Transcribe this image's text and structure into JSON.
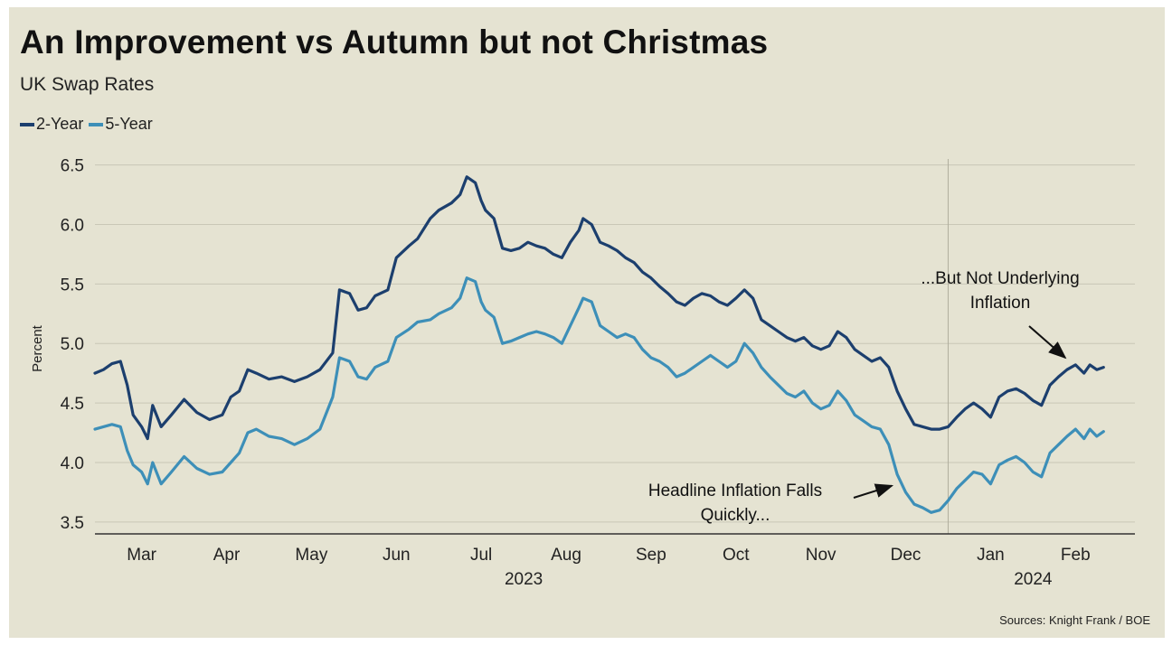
{
  "header": {
    "title": "An Improvement vs Autumn but not Christmas",
    "subtitle": "UK Swap Rates"
  },
  "footer": {
    "source": "Sources: Knight Frank / BOE"
  },
  "chart_data": {
    "type": "line",
    "title": "An Improvement vs Autumn but not Christmas",
    "subtitle": "UK Swap Rates",
    "ylabel": "Percent",
    "xlabel": "",
    "ylim": [
      3.4,
      6.55
    ],
    "xlim": [
      0,
      12.25
    ],
    "yticks": [
      3.5,
      4.0,
      4.5,
      5.0,
      5.5,
      6.0,
      6.5
    ],
    "ytick_labels": [
      "3.5",
      "4.0",
      "4.5",
      "5.0",
      "5.5",
      "6.0",
      "6.5"
    ],
    "xticks": [
      {
        "label": "Mar",
        "pos": 0.55
      },
      {
        "label": "Apr",
        "pos": 1.55
      },
      {
        "label": "May",
        "pos": 2.55
      },
      {
        "label": "Jun",
        "pos": 3.55
      },
      {
        "label": "Jul",
        "pos": 4.55
      },
      {
        "label": "Aug",
        "pos": 5.55
      },
      {
        "label": "Sep",
        "pos": 6.55
      },
      {
        "label": "Oct",
        "pos": 7.55
      },
      {
        "label": "Nov",
        "pos": 8.55
      },
      {
        "label": "Dec",
        "pos": 9.55
      },
      {
        "label": "Jan",
        "pos": 10.55
      },
      {
        "label": "Feb",
        "pos": 11.55
      }
    ],
    "year_labels": [
      {
        "label": "2023",
        "pos": 5.05
      },
      {
        "label": "2024",
        "pos": 11.05
      }
    ],
    "year_divider": 10.05,
    "grid": true,
    "legend_position": "top-left",
    "series": [
      {
        "name": "2-Year",
        "color": "#1c3f6e",
        "points": [
          [
            0.0,
            4.75
          ],
          [
            0.1,
            4.78
          ],
          [
            0.2,
            4.83
          ],
          [
            0.3,
            4.85
          ],
          [
            0.38,
            4.65
          ],
          [
            0.45,
            4.4
          ],
          [
            0.55,
            4.3
          ],
          [
            0.62,
            4.2
          ],
          [
            0.68,
            4.48
          ],
          [
            0.78,
            4.3
          ],
          [
            0.9,
            4.4
          ],
          [
            1.05,
            4.53
          ],
          [
            1.2,
            4.42
          ],
          [
            1.35,
            4.36
          ],
          [
            1.5,
            4.4
          ],
          [
            1.6,
            4.55
          ],
          [
            1.7,
            4.6
          ],
          [
            1.8,
            4.78
          ],
          [
            1.9,
            4.75
          ],
          [
            2.05,
            4.7
          ],
          [
            2.2,
            4.72
          ],
          [
            2.35,
            4.68
          ],
          [
            2.5,
            4.72
          ],
          [
            2.65,
            4.78
          ],
          [
            2.8,
            4.92
          ],
          [
            2.88,
            5.45
          ],
          [
            3.0,
            5.42
          ],
          [
            3.1,
            5.28
          ],
          [
            3.2,
            5.3
          ],
          [
            3.3,
            5.4
          ],
          [
            3.45,
            5.45
          ],
          [
            3.55,
            5.72
          ],
          [
            3.7,
            5.82
          ],
          [
            3.8,
            5.88
          ],
          [
            3.95,
            6.05
          ],
          [
            4.05,
            6.12
          ],
          [
            4.2,
            6.18
          ],
          [
            4.3,
            6.25
          ],
          [
            4.38,
            6.4
          ],
          [
            4.48,
            6.35
          ],
          [
            4.55,
            6.2
          ],
          [
            4.6,
            6.12
          ],
          [
            4.7,
            6.05
          ],
          [
            4.8,
            5.8
          ],
          [
            4.9,
            5.78
          ],
          [
            5.0,
            5.8
          ],
          [
            5.1,
            5.85
          ],
          [
            5.2,
            5.82
          ],
          [
            5.3,
            5.8
          ],
          [
            5.4,
            5.75
          ],
          [
            5.5,
            5.72
          ],
          [
            5.6,
            5.85
          ],
          [
            5.7,
            5.95
          ],
          [
            5.75,
            6.05
          ],
          [
            5.85,
            6.0
          ],
          [
            5.95,
            5.85
          ],
          [
            6.05,
            5.82
          ],
          [
            6.15,
            5.78
          ],
          [
            6.25,
            5.72
          ],
          [
            6.35,
            5.68
          ],
          [
            6.45,
            5.6
          ],
          [
            6.55,
            5.55
          ],
          [
            6.65,
            5.48
          ],
          [
            6.75,
            5.42
          ],
          [
            6.85,
            5.35
          ],
          [
            6.95,
            5.32
          ],
          [
            7.05,
            5.38
          ],
          [
            7.15,
            5.42
          ],
          [
            7.25,
            5.4
          ],
          [
            7.35,
            5.35
          ],
          [
            7.45,
            5.32
          ],
          [
            7.55,
            5.38
          ],
          [
            7.65,
            5.45
          ],
          [
            7.75,
            5.38
          ],
          [
            7.85,
            5.2
          ],
          [
            7.95,
            5.15
          ],
          [
            8.05,
            5.1
          ],
          [
            8.15,
            5.05
          ],
          [
            8.25,
            5.02
          ],
          [
            8.35,
            5.05
          ],
          [
            8.45,
            4.98
          ],
          [
            8.55,
            4.95
          ],
          [
            8.65,
            4.98
          ],
          [
            8.75,
            5.1
          ],
          [
            8.85,
            5.05
          ],
          [
            8.95,
            4.95
          ],
          [
            9.05,
            4.9
          ],
          [
            9.15,
            4.85
          ],
          [
            9.25,
            4.88
          ],
          [
            9.35,
            4.8
          ],
          [
            9.45,
            4.6
          ],
          [
            9.55,
            4.45
          ],
          [
            9.65,
            4.32
          ],
          [
            9.75,
            4.3
          ],
          [
            9.85,
            4.28
          ],
          [
            9.95,
            4.28
          ],
          [
            10.05,
            4.3
          ],
          [
            10.15,
            4.38
          ],
          [
            10.25,
            4.45
          ],
          [
            10.35,
            4.5
          ],
          [
            10.45,
            4.45
          ],
          [
            10.55,
            4.38
          ],
          [
            10.65,
            4.55
          ],
          [
            10.75,
            4.6
          ],
          [
            10.85,
            4.62
          ],
          [
            10.95,
            4.58
          ],
          [
            11.05,
            4.52
          ],
          [
            11.15,
            4.48
          ],
          [
            11.25,
            4.65
          ],
          [
            11.35,
            4.72
          ],
          [
            11.45,
            4.78
          ],
          [
            11.55,
            4.82
          ],
          [
            11.65,
            4.75
          ],
          [
            11.72,
            4.82
          ],
          [
            11.8,
            4.78
          ],
          [
            11.88,
            4.8
          ]
        ]
      },
      {
        "name": "5-Year",
        "color": "#3d8fb8",
        "points": [
          [
            0.0,
            4.28
          ],
          [
            0.1,
            4.3
          ],
          [
            0.2,
            4.32
          ],
          [
            0.3,
            4.3
          ],
          [
            0.38,
            4.1
          ],
          [
            0.45,
            3.98
          ],
          [
            0.55,
            3.92
          ],
          [
            0.62,
            3.82
          ],
          [
            0.68,
            4.0
          ],
          [
            0.78,
            3.82
          ],
          [
            0.9,
            3.92
          ],
          [
            1.05,
            4.05
          ],
          [
            1.2,
            3.95
          ],
          [
            1.35,
            3.9
          ],
          [
            1.5,
            3.92
          ],
          [
            1.6,
            4.0
          ],
          [
            1.7,
            4.08
          ],
          [
            1.8,
            4.25
          ],
          [
            1.9,
            4.28
          ],
          [
            2.05,
            4.22
          ],
          [
            2.2,
            4.2
          ],
          [
            2.35,
            4.15
          ],
          [
            2.5,
            4.2
          ],
          [
            2.65,
            4.28
          ],
          [
            2.8,
            4.55
          ],
          [
            2.88,
            4.88
          ],
          [
            3.0,
            4.85
          ],
          [
            3.1,
            4.72
          ],
          [
            3.2,
            4.7
          ],
          [
            3.3,
            4.8
          ],
          [
            3.45,
            4.85
          ],
          [
            3.55,
            5.05
          ],
          [
            3.7,
            5.12
          ],
          [
            3.8,
            5.18
          ],
          [
            3.95,
            5.2
          ],
          [
            4.05,
            5.25
          ],
          [
            4.2,
            5.3
          ],
          [
            4.3,
            5.38
          ],
          [
            4.38,
            5.55
          ],
          [
            4.48,
            5.52
          ],
          [
            4.55,
            5.35
          ],
          [
            4.6,
            5.28
          ],
          [
            4.7,
            5.22
          ],
          [
            4.8,
            5.0
          ],
          [
            4.9,
            5.02
          ],
          [
            5.0,
            5.05
          ],
          [
            5.1,
            5.08
          ],
          [
            5.2,
            5.1
          ],
          [
            5.3,
            5.08
          ],
          [
            5.4,
            5.05
          ],
          [
            5.5,
            5.0
          ],
          [
            5.6,
            5.15
          ],
          [
            5.7,
            5.3
          ],
          [
            5.75,
            5.38
          ],
          [
            5.85,
            5.35
          ],
          [
            5.95,
            5.15
          ],
          [
            6.05,
            5.1
          ],
          [
            6.15,
            5.05
          ],
          [
            6.25,
            5.08
          ],
          [
            6.35,
            5.05
          ],
          [
            6.45,
            4.95
          ],
          [
            6.55,
            4.88
          ],
          [
            6.65,
            4.85
          ],
          [
            6.75,
            4.8
          ],
          [
            6.85,
            4.72
          ],
          [
            6.95,
            4.75
          ],
          [
            7.05,
            4.8
          ],
          [
            7.15,
            4.85
          ],
          [
            7.25,
            4.9
          ],
          [
            7.35,
            4.85
          ],
          [
            7.45,
            4.8
          ],
          [
            7.55,
            4.85
          ],
          [
            7.65,
            5.0
          ],
          [
            7.75,
            4.92
          ],
          [
            7.85,
            4.8
          ],
          [
            7.95,
            4.72
          ],
          [
            8.05,
            4.65
          ],
          [
            8.15,
            4.58
          ],
          [
            8.25,
            4.55
          ],
          [
            8.35,
            4.6
          ],
          [
            8.45,
            4.5
          ],
          [
            8.55,
            4.45
          ],
          [
            8.65,
            4.48
          ],
          [
            8.75,
            4.6
          ],
          [
            8.85,
            4.52
          ],
          [
            8.95,
            4.4
          ],
          [
            9.05,
            4.35
          ],
          [
            9.15,
            4.3
          ],
          [
            9.25,
            4.28
          ],
          [
            9.35,
            4.15
          ],
          [
            9.45,
            3.9
          ],
          [
            9.55,
            3.75
          ],
          [
            9.65,
            3.65
          ],
          [
            9.75,
            3.62
          ],
          [
            9.85,
            3.58
          ],
          [
            9.95,
            3.6
          ],
          [
            10.05,
            3.68
          ],
          [
            10.15,
            3.78
          ],
          [
            10.25,
            3.85
          ],
          [
            10.35,
            3.92
          ],
          [
            10.45,
            3.9
          ],
          [
            10.55,
            3.82
          ],
          [
            10.65,
            3.98
          ],
          [
            10.75,
            4.02
          ],
          [
            10.85,
            4.05
          ],
          [
            10.95,
            4.0
          ],
          [
            11.05,
            3.92
          ],
          [
            11.15,
            3.88
          ],
          [
            11.25,
            4.08
          ],
          [
            11.35,
            4.15
          ],
          [
            11.45,
            4.22
          ],
          [
            11.55,
            4.28
          ],
          [
            11.65,
            4.2
          ],
          [
            11.72,
            4.28
          ],
          [
            11.8,
            4.22
          ],
          [
            11.88,
            4.26
          ]
        ]
      }
    ],
    "annotations": [
      {
        "lines": [
          "...But Not Underlying",
          "Inflation"
        ],
        "arrow_to": [
          11.45,
          4.85
        ]
      },
      {
        "lines": [
          "Headline Inflation Falls",
          "Quickly..."
        ],
        "arrow_to": [
          9.45,
          3.82
        ]
      }
    ]
  }
}
